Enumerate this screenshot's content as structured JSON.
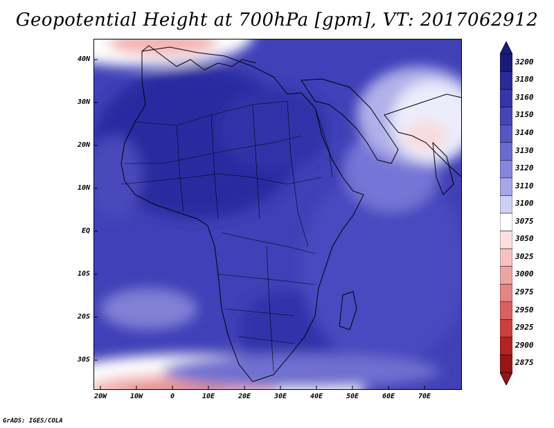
{
  "title": "Geopotential Height at 700hPa [gpm], VT: 2017062912",
  "credit": "GrADS: IGES/COLA",
  "y_axis_labels": [
    "40N",
    "30N",
    "20N",
    "10N",
    "EQ",
    "10S",
    "20S",
    "30S"
  ],
  "x_axis_labels": [
    "20W",
    "10W",
    "0",
    "10E",
    "20E",
    "30E",
    "40E",
    "50E",
    "60E",
    "70E"
  ],
  "colorbar": {
    "levels": [
      "3200",
      "3180",
      "3160",
      "3150",
      "3140",
      "3130",
      "3120",
      "3110",
      "3100",
      "3075",
      "3050",
      "3025",
      "3000",
      "2975",
      "2950",
      "2925",
      "2900",
      "2875"
    ],
    "colors": [
      "#1a1a7a",
      "#2a2a9a",
      "#3535b0",
      "#4444bb",
      "#5555c8",
      "#6a6ad2",
      "#8585dd",
      "#a5a5e8",
      "#cfcff4",
      "#ffffff",
      "#fbe0e0",
      "#f5c2c2",
      "#eca5a5",
      "#e38585",
      "#d96060",
      "#cc3f3f",
      "#b82222",
      "#9a1414"
    ]
  }
}
